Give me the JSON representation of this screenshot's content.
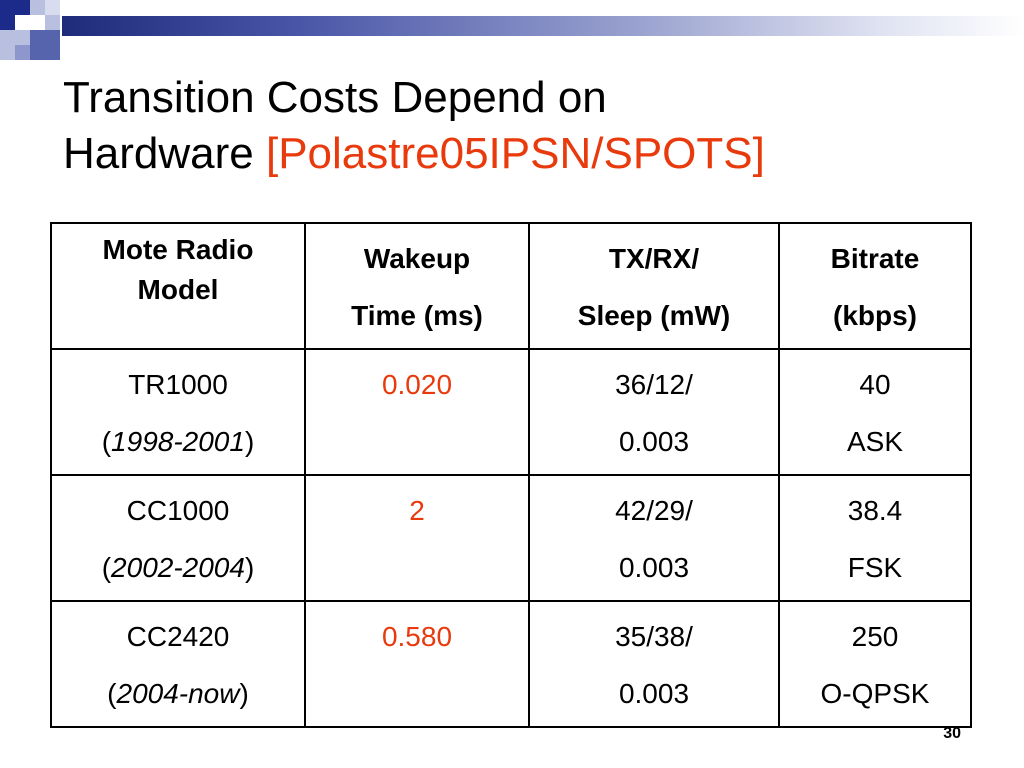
{
  "title": {
    "line1": "Transition Costs Depend on",
    "line2_plain": "Hardware ",
    "citation": "[Polastre05IPSN/SPOTS]"
  },
  "table": {
    "headers": [
      {
        "line1": "Mote Radio",
        "line2": "Model"
      },
      {
        "line1": "Wakeup",
        "line2": "Time (ms)"
      },
      {
        "line1": "TX/RX/",
        "line2": "Sleep (mW)"
      },
      {
        "line1": "Bitrate",
        "line2": "(kbps)"
      }
    ],
    "rows": [
      {
        "model": "TR1000",
        "years": "1998-2001",
        "wakeup": "0.020",
        "power1": "36/12/",
        "power2": "0.003",
        "bitrate": "40",
        "modulation": "ASK"
      },
      {
        "model": "CC1000",
        "years": "2002-2004",
        "wakeup": "2",
        "power1": "42/29/",
        "power2": "0.003",
        "bitrate": "38.4",
        "modulation": "FSK"
      },
      {
        "model": "CC2420",
        "years": "2004-now",
        "wakeup": "0.580",
        "power1": "35/38/",
        "power2": "0.003",
        "bitrate": "250",
        "modulation": "O-QPSK"
      }
    ]
  },
  "page_number": "30",
  "colors": {
    "accent": "#e83a0c",
    "deco_dark": "#1c2a8a"
  }
}
